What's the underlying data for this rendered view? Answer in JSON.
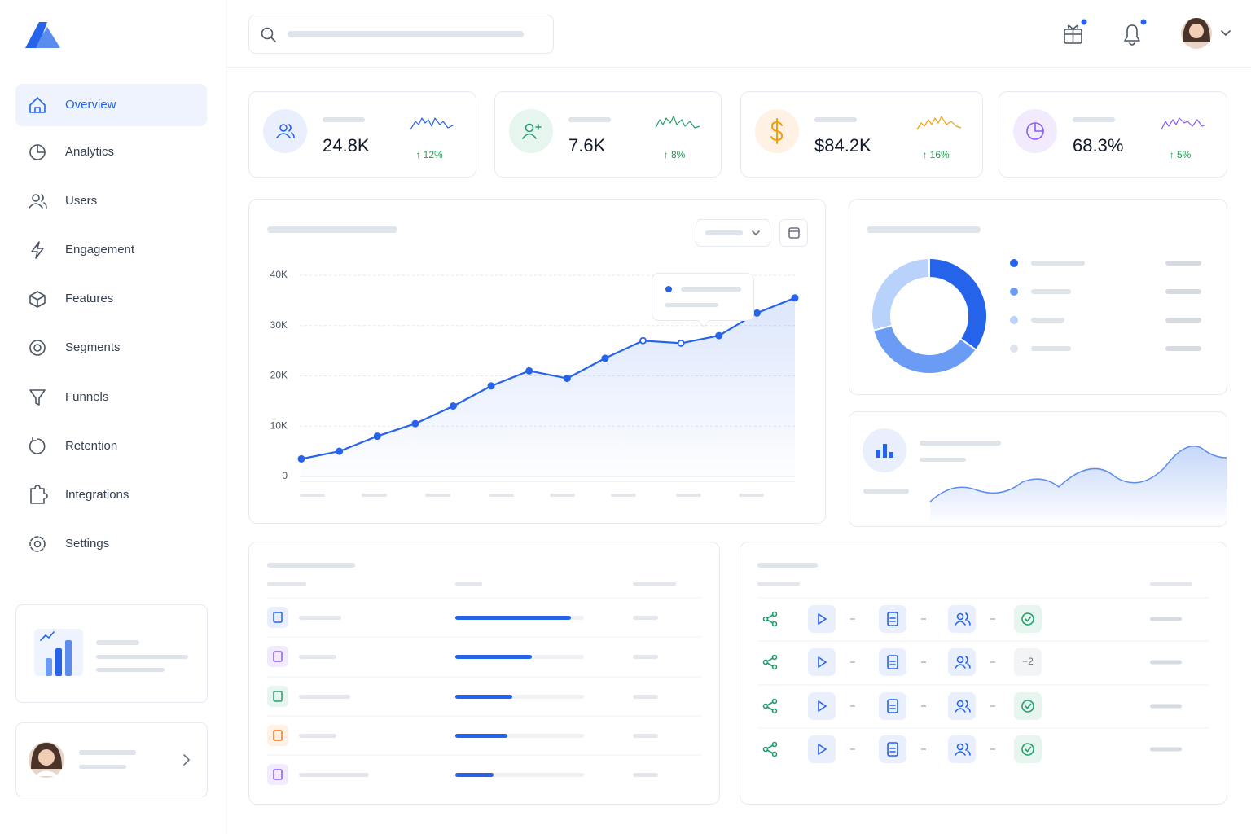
{
  "sidebar": {
    "nav": [
      "Overview",
      "Analytics",
      "Users",
      "Engagement",
      "Features",
      "Segments",
      "Funnels",
      "Retention",
      "Integrations",
      "Settings"
    ]
  },
  "kpis": [
    {
      "value": "24.8K",
      "change": "↑ 12%",
      "color": "#2563eb",
      "bg": "#e9effd"
    },
    {
      "value": "7.6K",
      "change": "↑ 8%",
      "color": "#22a06b",
      "bg": "#e6f6ef"
    },
    {
      "value": "$84.2K",
      "change": "↑ 16%",
      "color": "#f59e0b",
      "bg": "#fff1e3"
    },
    {
      "value": "68.3%",
      "change": "↑ 5%",
      "color": "#8b5cf6",
      "bg": "#f1ebfd"
    }
  ],
  "traffic_chart": {
    "type": "line",
    "values": [
      3500,
      5000,
      8000,
      10500,
      14000,
      18000,
      21000,
      19500,
      23500,
      27000,
      26500,
      28000,
      32500,
      35500
    ],
    "ylim": [
      0,
      40000
    ],
    "yticks": [
      0,
      {
        "value": 10000,
        "label": "10K"
      },
      {
        "value": 20000,
        "label": "20K"
      },
      {
        "value": 30000,
        "label": "30K"
      },
      {
        "value": 40000,
        "label": "40K"
      }
    ],
    "color": "#2563eb",
    "grid": true
  },
  "donut": {
    "type": "pie",
    "values": [
      35,
      36,
      29
    ],
    "colors": [
      "#2563eb",
      "#6b9cf5",
      "#b9d2fb"
    ]
  },
  "flows": {
    "extra_badge": "+2"
  }
}
